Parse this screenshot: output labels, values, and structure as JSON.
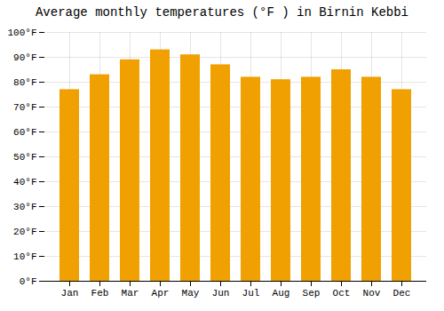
{
  "chart_data": {
    "type": "bar",
    "title": "Average monthly temperatures (°F ) in Birnin Kebbi",
    "categories": [
      "Jan",
      "Feb",
      "Mar",
      "Apr",
      "May",
      "Jun",
      "Jul",
      "Aug",
      "Sep",
      "Oct",
      "Nov",
      "Dec"
    ],
    "values": [
      77,
      83,
      89,
      93,
      91,
      87,
      82,
      81,
      82,
      85,
      82,
      77
    ],
    "color": "#F0A000",
    "ylim": [
      0,
      100
    ],
    "yticks": [
      {
        "value": 0,
        "label": "0°F"
      },
      {
        "value": 10,
        "label": "10°F"
      },
      {
        "value": 20,
        "label": "20°F"
      },
      {
        "value": 30,
        "label": "30°F"
      },
      {
        "value": 40,
        "label": "40°F"
      },
      {
        "value": 50,
        "label": "50°F"
      },
      {
        "value": 60,
        "label": "60°F"
      },
      {
        "value": 70,
        "label": "70°F"
      },
      {
        "value": 80,
        "label": "80°F"
      },
      {
        "value": 90,
        "label": "90°F"
      },
      {
        "value": 100,
        "label": "100°F"
      }
    ],
    "grid": true
  }
}
